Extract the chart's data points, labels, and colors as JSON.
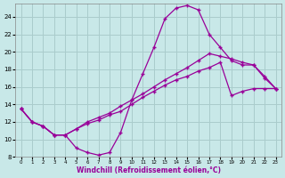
{
  "xlabel": "Windchill (Refroidissement éolien,°C)",
  "bg_color": "#c8e8e8",
  "grid_color": "#aacccc",
  "line_color": "#990099",
  "xlim": [
    -0.5,
    23.5
  ],
  "ylim": [
    8,
    25.5
  ],
  "xticks": [
    0,
    1,
    2,
    3,
    4,
    5,
    6,
    7,
    8,
    9,
    10,
    11,
    12,
    13,
    14,
    15,
    16,
    17,
    18,
    19,
    20,
    21,
    22,
    23
  ],
  "yticks": [
    8,
    10,
    12,
    14,
    16,
    18,
    20,
    22,
    24
  ],
  "line1_x": [
    0,
    1,
    2,
    3,
    4,
    5,
    6,
    7,
    8,
    9,
    10,
    11,
    12,
    13,
    14,
    15,
    16,
    17,
    18,
    19,
    20,
    21,
    22,
    23
  ],
  "line1_y": [
    13.5,
    12.0,
    11.5,
    10.5,
    10.5,
    9.0,
    8.5,
    8.2,
    8.5,
    10.8,
    14.5,
    17.5,
    20.5,
    23.8,
    25.0,
    25.3,
    24.8,
    22.0,
    20.5,
    19.0,
    18.5,
    18.5,
    17.0,
    15.8
  ],
  "line2_x": [
    0,
    1,
    2,
    3,
    4,
    5,
    6,
    7,
    8,
    9,
    10,
    11,
    12,
    13,
    14,
    15,
    16,
    17,
    18,
    19,
    20,
    21,
    22,
    23
  ],
  "line2_y": [
    13.5,
    12.0,
    11.5,
    10.5,
    10.5,
    11.2,
    11.8,
    12.2,
    12.8,
    13.2,
    14.0,
    14.8,
    15.5,
    16.2,
    16.8,
    17.2,
    17.8,
    18.2,
    18.8,
    15.0,
    15.5,
    15.8,
    15.8,
    15.8
  ],
  "line3_x": [
    0,
    1,
    2,
    3,
    4,
    5,
    6,
    7,
    8,
    9,
    10,
    11,
    12,
    13,
    14,
    15,
    16,
    17,
    18,
    19,
    20,
    21,
    22,
    23
  ],
  "line3_y": [
    13.5,
    12.0,
    11.5,
    10.5,
    10.5,
    11.2,
    12.0,
    12.5,
    13.0,
    13.8,
    14.5,
    15.2,
    16.0,
    16.8,
    17.5,
    18.2,
    19.0,
    19.8,
    19.5,
    19.2,
    18.8,
    18.5,
    17.2,
    15.8
  ]
}
